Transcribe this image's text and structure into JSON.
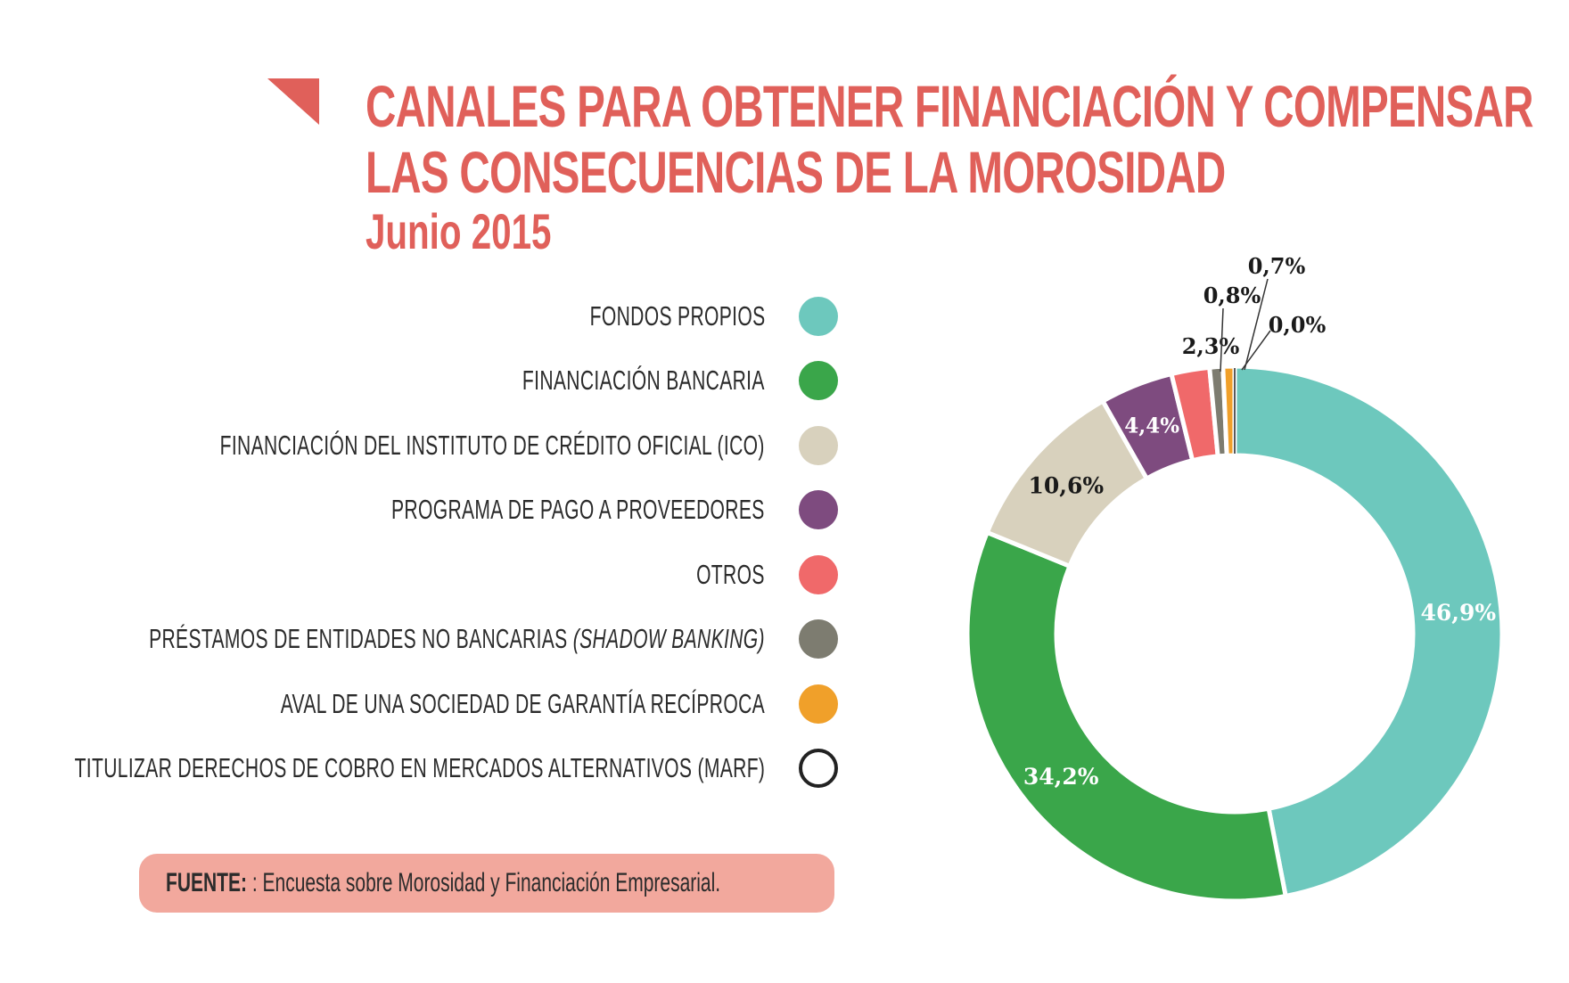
{
  "title_line1": "CANALES PARA OBTENER FINANCIACIÓN Y COMPENSAR",
  "title_line2": "LAS CONSECUENCIAS DE LA MOROSIDAD",
  "subtitle": "Junio 2015",
  "source": {
    "label": "FUENTE:",
    "text": ": Encuesta sobre Morosidad y Financiación Empresarial."
  },
  "colors": {
    "accent": "#e0605a",
    "source_bg": "#f2a89d"
  },
  "chart_data": {
    "type": "pie",
    "donut": true,
    "legend_position": "left",
    "series": [
      {
        "name": "FONDOS PROPIOS",
        "value": 46.9,
        "label": "46,9%",
        "color": "#6dc8bd"
      },
      {
        "name": "FINANCIACIÓN BANCARIA",
        "value": 34.2,
        "label": "34,2%",
        "color": "#3aa64a"
      },
      {
        "name": "FINANCIACIÓN DEL INSTITUTO DE CRÉDITO OFICIAL (ICO)",
        "value": 10.6,
        "label": "10,6%",
        "color": "#d8d1bd"
      },
      {
        "name": "PROGRAMA DE PAGO A PROVEEDORES",
        "value": 4.4,
        "label": "4,4%",
        "color": "#7e4b7f"
      },
      {
        "name": "OTROS",
        "value": 2.3,
        "label": "2,3%",
        "color": "#f0696a"
      },
      {
        "name": "PRÉSTAMOS DE ENTIDADES NO BANCARIAS",
        "name_italic": "(SHADOW BANKING)",
        "value": 0.8,
        "label": "0,8%",
        "color": "#7d7c70"
      },
      {
        "name": "AVAL DE UNA SOCIEDAD DE GARANTÍA RECÍPROCA",
        "value": 0.7,
        "label": "0,7%",
        "color": "#f0a02a"
      },
      {
        "name": "TITULIZAR DERECHOS DE COBRO EN MERCADOS ALTERNATIVOS (MARF)",
        "value": 0.0,
        "label": "0,0%",
        "color": "#ffffff",
        "outline": "#222222"
      }
    ]
  }
}
